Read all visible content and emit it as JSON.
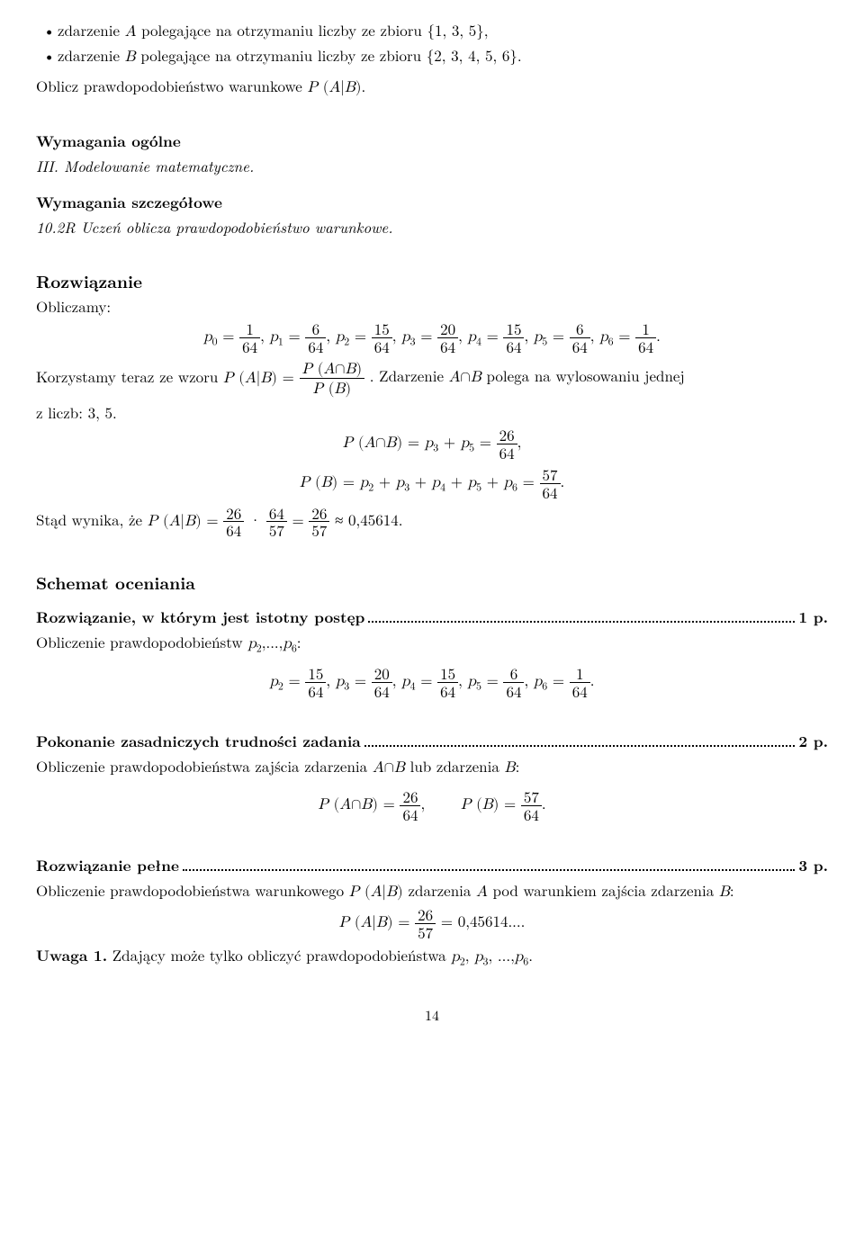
{
  "bullets": {
    "a": "zdarzenie A polegające na otrzymaniu liczby ze zbioru {1, 3, 5},",
    "b": "zdarzenie B polegające na otrzymaniu liczby ze zbioru {2, 3, 4, 5, 6}."
  },
  "instruction": "Oblicz prawdopodobieństwo warunkowe P (A|B).",
  "req_general_title": "Wymagania ogólne",
  "req_general_body": "III. Modelowanie matematyczne.",
  "req_detail_title": "Wymagania szczegółowe",
  "req_detail_body": "10.2R Uczeń oblicza prawdopodobieństwo warunkowe.",
  "solution_title": "Rozwiązanie",
  "solution_intro": "Obliczamy:",
  "p_values": {
    "p0_num": "1",
    "p0_den": "64",
    "p1_num": "6",
    "p1_den": "64",
    "p2_num": "15",
    "p2_den": "64",
    "p3_num": "20",
    "p3_den": "64",
    "p4_num": "15",
    "p4_den": "64",
    "p5_num": "6",
    "p5_den": "64",
    "p6_num": "1",
    "p6_den": "64"
  },
  "korzystamy_pre": "Korzystamy teraz ze wzoru ",
  "korzystamy_formula_lhs": "P (A|B) =",
  "korzystamy_frac_num": "P (A∩B)",
  "korzystamy_frac_den": "P (B)",
  "korzystamy_post": ". Zdarzenie A∩B polega na wylosowaniu jednej",
  "zliczb": "z liczb: 3, 5.",
  "pab_lhs": "P (A∩B) = p",
  "pab_sub1": "3",
  "pab_mid": " + p",
  "pab_sub2": "5",
  "pab_eq": " = ",
  "pab_num": "26",
  "pab_den": "64",
  "pb_lhs": "P (B) = p",
  "pb_s2": "2",
  "pb_s3": "3",
  "pb_s4": "4",
  "pb_s5": "5",
  "pb_s6": "6",
  "pb_plus": " + p",
  "pb_eq": " = ",
  "pb_num": "57",
  "pb_den": "64",
  "stad_pre": "Stąd wynika, że ",
  "stad_lhs": "P (A|B) = ",
  "stad_f1_num": "26",
  "stad_f1_den": "64",
  "stad_dot": " · ",
  "stad_f2_num": "64",
  "stad_f2_den": "57",
  "stad_eq2": " = ",
  "stad_f3_num": "26",
  "stad_f3_den": "57",
  "stad_approx": " ≈ 0,45614.",
  "scheme_title": "Schemat oceniania",
  "step1_lead": "Rozwiązanie, w którym jest istotny postęp",
  "step1_pts": "1 p.",
  "step1_desc_pre": "Obliczenie prawdopodobieństw ",
  "step1_desc_mid": "p",
  "step1_desc_s2": "2",
  "step1_desc_dots": ",...,",
  "step1_desc_s6": "6",
  "step1_desc_colon": ":",
  "step1_p2_num": "15",
  "step1_p2_den": "64",
  "step1_p3_num": "20",
  "step1_p3_den": "64",
  "step1_p4_num": "15",
  "step1_p4_den": "64",
  "step1_p5_num": "6",
  "step1_p5_den": "64",
  "step1_p6_num": "1",
  "step1_p6_den": "64",
  "step2_lead": "Pokonanie zasadniczych trudności zadania",
  "step2_pts": "2 p.",
  "step2_desc": "Obliczenie prawdopodobieństwa zajścia zdarzenia A∩B lub zdarzenia B:",
  "step2_pab_lhs": "P (A∩B) = ",
  "step2_pab_num": "26",
  "step2_pab_den": "64",
  "step2_pb_lhs": "P (B) = ",
  "step2_pb_num": "57",
  "step2_pb_den": "64",
  "step3_lead": "Rozwiązanie pełne",
  "step3_pts": "3 p.",
  "step3_desc": "Obliczenie prawdopodobieństwa warunkowego P (A|B) zdarzenia A pod warunkiem zajścia zdarzenia B:",
  "step3_lhs": "P (A|B) = ",
  "step3_num": "26",
  "step3_den": "57",
  "step3_rhs": " = 0,45614....",
  "uwaga_bold": "Uwaga 1.",
  "uwaga_text": " Zdający może tylko obliczyć prawdopodobieństwa ",
  "uwaga_p2": "p",
  "uwaga_s2": "2",
  "uwaga_p3": "p",
  "uwaga_s3": "3",
  "uwaga_dots": ", ...,",
  "uwaga_p6": "p",
  "uwaga_s6": "6",
  "uwaga_period": ".",
  "comma_sep": ", ",
  "period": ".",
  "p_letter": "p",
  "pagenum": "14"
}
